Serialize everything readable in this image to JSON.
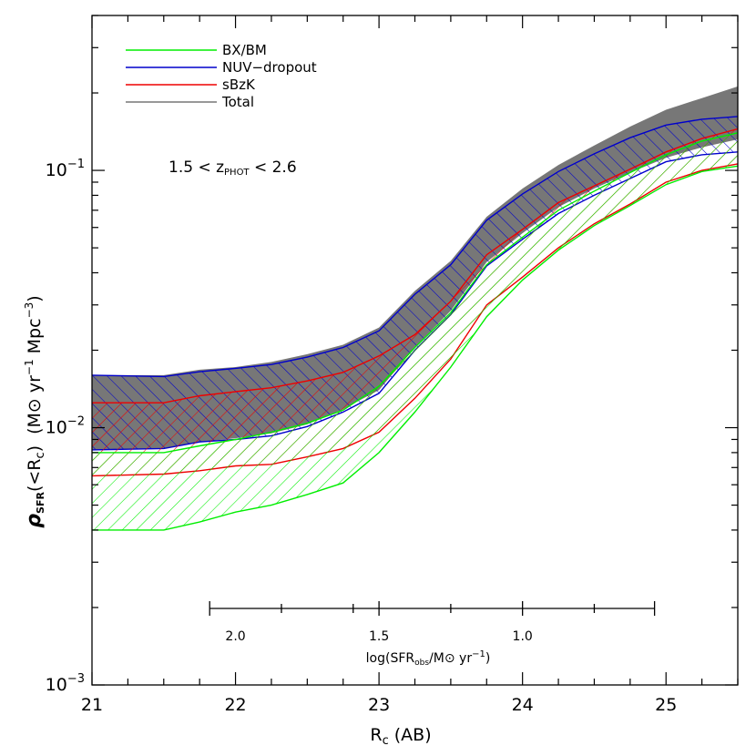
{
  "chart_data": {
    "type": "area",
    "xlabel": {
      "main": "R",
      "sub": "c",
      "rest": " (AB)"
    },
    "ylabel": {
      "rho": "ρ",
      "sub": "SFR",
      "paren": "(<R",
      "csub": "c",
      "close": ")",
      "units": "(M⊙ yr",
      "exp1": "−1",
      "mpc": " Mpc",
      "exp2": "−3",
      "end": ")"
    },
    "xlim": [
      21,
      25.5
    ],
    "ylim": [
      0.001,
      0.4
    ],
    "y_scale": "log",
    "x_ticks": [
      "21",
      "22",
      "23",
      "24",
      "25"
    ],
    "x_tick_values": [
      21,
      22,
      23,
      24,
      25
    ],
    "y_ticks": [
      {
        "value": 0.1,
        "base": "10",
        "exp": "−1"
      },
      {
        "value": 0.01,
        "base": "10",
        "exp": "−2"
      },
      {
        "value": 0.001,
        "base": "10",
        "exp": "−3"
      }
    ],
    "annotation": {
      "a": "1.5  <  z",
      "sub": "PHOT",
      "b": "  <  2.6"
    },
    "sfr_axis": {
      "label": {
        "a": "log(SFR",
        "sub": "obs",
        "b": "/M⊙ yr",
        "exp": "−1",
        "c": ")"
      },
      "ticks": [
        "2.0",
        "1.5",
        "1.0"
      ],
      "tick_positions_rc": [
        22.0,
        23.0,
        24.0
      ]
    },
    "legend": [
      {
        "label": "BX/BM",
        "color": "#00ee00"
      },
      {
        "label": "NUV−dropout",
        "color": "#0000cc"
      },
      {
        "label": "sBzK",
        "color": "#ee0000"
      },
      {
        "label": "Total",
        "color": "#777777"
      }
    ],
    "series": [
      {
        "name": "Total",
        "color": "#777777",
        "fill": "solid",
        "x": [
          21,
          21.5,
          21.75,
          22,
          22.25,
          22.5,
          22.75,
          23,
          23.25,
          23.5,
          23.75,
          24,
          24.25,
          24.5,
          24.75,
          25,
          25.25,
          25.5
        ],
        "lower": [
          0.0082,
          0.0083,
          0.0088,
          0.0091,
          0.0095,
          0.0103,
          0.0118,
          0.014,
          0.0205,
          0.0285,
          0.044,
          0.057,
          0.072,
          0.085,
          0.098,
          0.112,
          0.123,
          0.132
        ],
        "upper": [
          0.016,
          0.016,
          0.0168,
          0.0172,
          0.018,
          0.0193,
          0.021,
          0.0245,
          0.034,
          0.0445,
          0.066,
          0.085,
          0.105,
          0.125,
          0.148,
          0.172,
          0.191,
          0.212
        ]
      },
      {
        "name": "NUV−dropout",
        "color": "#0000cc",
        "fill": "hatch-right",
        "x": [
          21,
          21.5,
          21.75,
          22,
          22.25,
          22.5,
          22.75,
          23,
          23.25,
          23.5,
          23.75,
          24,
          24.25,
          24.5,
          24.75,
          25,
          25.25,
          25.5
        ],
        "lower": [
          0.0082,
          0.0083,
          0.0088,
          0.009,
          0.0093,
          0.0101,
          0.0115,
          0.0136,
          0.02,
          0.0275,
          0.0425,
          0.054,
          0.068,
          0.08,
          0.093,
          0.108,
          0.115,
          0.118
        ],
        "upper": [
          0.016,
          0.0158,
          0.0165,
          0.017,
          0.0176,
          0.0188,
          0.0205,
          0.0238,
          0.033,
          0.043,
          0.064,
          0.081,
          0.099,
          0.116,
          0.134,
          0.15,
          0.158,
          0.162
        ]
      },
      {
        "name": "sBzK",
        "color": "#ee0000",
        "fill": "hatch-left",
        "x": [
          21,
          21.5,
          21.75,
          22,
          22.25,
          22.5,
          22.75,
          23,
          23.25,
          23.5,
          23.75,
          24,
          24.25,
          24.5,
          24.75,
          25,
          25.25,
          25.5
        ],
        "lower": [
          0.0065,
          0.0066,
          0.0068,
          0.0071,
          0.0072,
          0.0077,
          0.0083,
          0.0096,
          0.013,
          0.0185,
          0.03,
          0.0385,
          0.05,
          0.062,
          0.074,
          0.09,
          0.1,
          0.106
        ],
        "upper": [
          0.0125,
          0.0125,
          0.0133,
          0.0138,
          0.0143,
          0.0152,
          0.0164,
          0.019,
          0.023,
          0.031,
          0.047,
          0.059,
          0.075,
          0.087,
          0.101,
          0.118,
          0.133,
          0.145
        ]
      },
      {
        "name": "BX/BM",
        "color": "#00ee00",
        "fill": "hatch-left",
        "x": [
          21,
          21.5,
          21.75,
          22,
          22.25,
          22.5,
          22.75,
          23,
          23.25,
          23.5,
          23.75,
          24,
          24.25,
          24.5,
          24.75,
          25,
          25.25,
          25.5
        ],
        "lower": [
          0.004,
          0.004,
          0.0043,
          0.0047,
          0.005,
          0.0055,
          0.0061,
          0.008,
          0.0115,
          0.0172,
          0.027,
          0.0375,
          0.049,
          0.061,
          0.073,
          0.088,
          0.099,
          0.104
        ],
        "upper": [
          0.008,
          0.008,
          0.0085,
          0.009,
          0.0096,
          0.0104,
          0.0117,
          0.0145,
          0.0205,
          0.028,
          0.043,
          0.055,
          0.07,
          0.083,
          0.098,
          0.115,
          0.13,
          0.14
        ]
      }
    ]
  }
}
